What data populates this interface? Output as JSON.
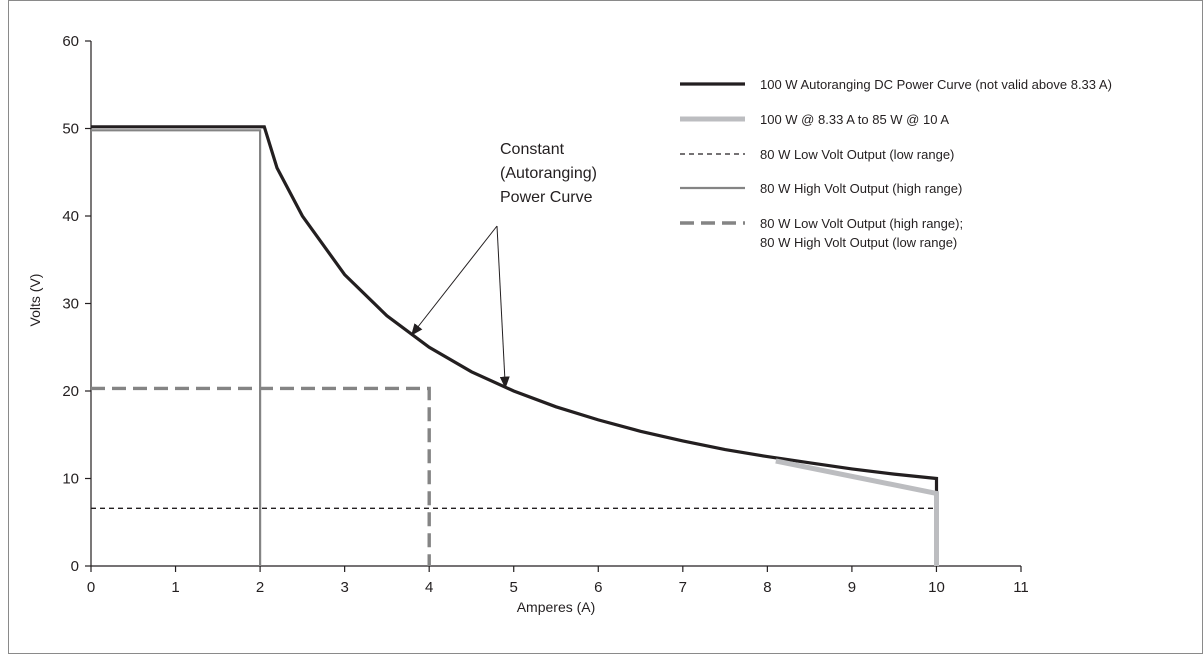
{
  "chart_data": {
    "type": "line",
    "title": "",
    "xlabel": "Amperes (A)",
    "ylabel": "Volts (V)",
    "xlim": [
      0,
      11
    ],
    "ylim": [
      0,
      60
    ],
    "x_ticks": [
      0,
      1,
      2,
      3,
      4,
      5,
      6,
      7,
      8,
      9,
      10,
      11
    ],
    "y_ticks": [
      0,
      10,
      20,
      30,
      40,
      50,
      60
    ],
    "grid": false,
    "legend_position": "top-right",
    "series": [
      {
        "name": "100 W Autoranging DC Power Curve (not valid above 8.33 A)",
        "color": "#231f20",
        "style": "solid-thick",
        "x": [
          0,
          2.05,
          2.2,
          2.5,
          3.0,
          3.5,
          4.0,
          4.5,
          5.0,
          5.5,
          6.0,
          6.5,
          7.0,
          7.5,
          8.0,
          8.5,
          9.0,
          9.5,
          10.0,
          10.0
        ],
        "y": [
          50.2,
          50.2,
          45.5,
          40.0,
          33.3,
          28.6,
          25.0,
          22.2,
          20.0,
          18.2,
          16.7,
          15.4,
          14.3,
          13.3,
          12.5,
          11.8,
          11.1,
          10.5,
          10.0,
          0
        ]
      },
      {
        "name": "100 W @ 8.33 A to 85 W @ 10 A",
        "color": "#bcbdc0",
        "style": "solid-thick",
        "x": [
          8.1,
          10.0,
          10.0
        ],
        "y": [
          12.0,
          8.3,
          0
        ]
      },
      {
        "name": "80 W Low Volt Output (low range)",
        "color": "#231f20",
        "style": "dashed-thin",
        "x": [
          0,
          10.0
        ],
        "y": [
          6.6,
          6.6
        ]
      },
      {
        "name": "80 W High Volt Output (high range)",
        "color": "#848484",
        "style": "solid",
        "x": [
          0,
          2.0,
          2.0
        ],
        "y": [
          49.8,
          49.8,
          0
        ]
      },
      {
        "name": "80 W Low Volt Output (high range);",
        "name_line2": "80 W High Volt Output (low range)",
        "color": "#848484",
        "style": "dashed-thick",
        "x": [
          0,
          4.0,
          4.0
        ],
        "y": [
          20.3,
          20.3,
          0
        ]
      }
    ],
    "annotations": [
      {
        "lines": [
          "Constant",
          "(Autoranging)",
          "Power Curve"
        ],
        "arrow_targets": [
          [
            3.8,
            26.5
          ],
          [
            4.9,
            20.5
          ]
        ]
      }
    ]
  }
}
